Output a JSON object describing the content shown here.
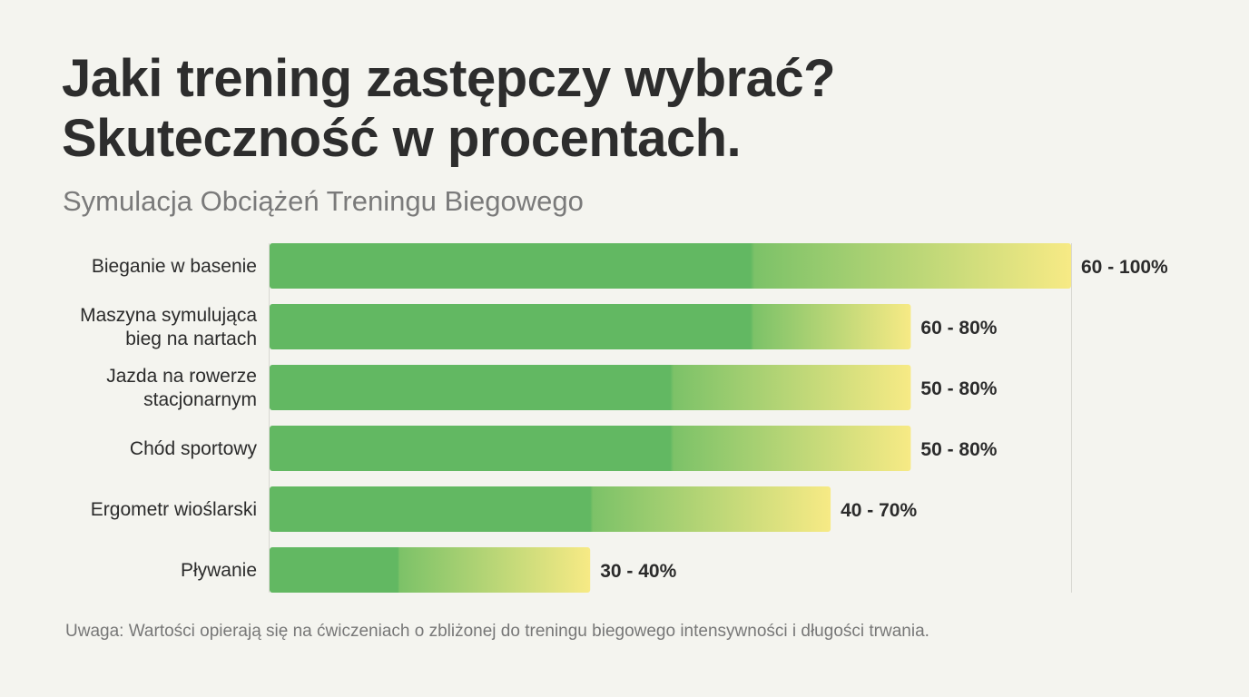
{
  "title_lines": [
    "Jaki trening zastępczy wybrać?",
    "Skuteczność w procentach."
  ],
  "subtitle": "Symulacja Obciążeń Treningu Biegowego",
  "note": "Uwaga: Wartości opierają się na ćwiczeniach o zbliżonej do treningu biegowego intensywności i długości trwania.",
  "colors": {
    "background": "#f4f4ef",
    "bar_solid": "#62b862",
    "bar_gradient_end": "#f7ea85",
    "text": "#2b2b2b",
    "muted": "#777777",
    "axis": "#d8d8d2"
  },
  "chart_data": {
    "type": "bar",
    "orientation": "horizontal",
    "range_bars": true,
    "xlim": [
      0,
      100
    ],
    "categories": [
      [
        "Bieganie w basenie"
      ],
      [
        "Maszyna symulująca",
        "bieg na nartach"
      ],
      [
        "Jazda na rowerze",
        "stacjonarnym"
      ],
      [
        "Chód sportowy"
      ],
      [
        "Ergometr wioślarski"
      ],
      [
        "Pływanie"
      ]
    ],
    "ranges": [
      {
        "min": 60,
        "max": 100,
        "label": "60 - 100%"
      },
      {
        "min": 60,
        "max": 80,
        "label": "60 - 80%"
      },
      {
        "min": 50,
        "max": 80,
        "label": "50 - 80%"
      },
      {
        "min": 50,
        "max": 80,
        "label": "50 - 80%"
      },
      {
        "min": 40,
        "max": 70,
        "label": "40 - 70%"
      },
      {
        "min": 30,
        "max": 40,
        "label": "30 - 40%"
      }
    ]
  }
}
